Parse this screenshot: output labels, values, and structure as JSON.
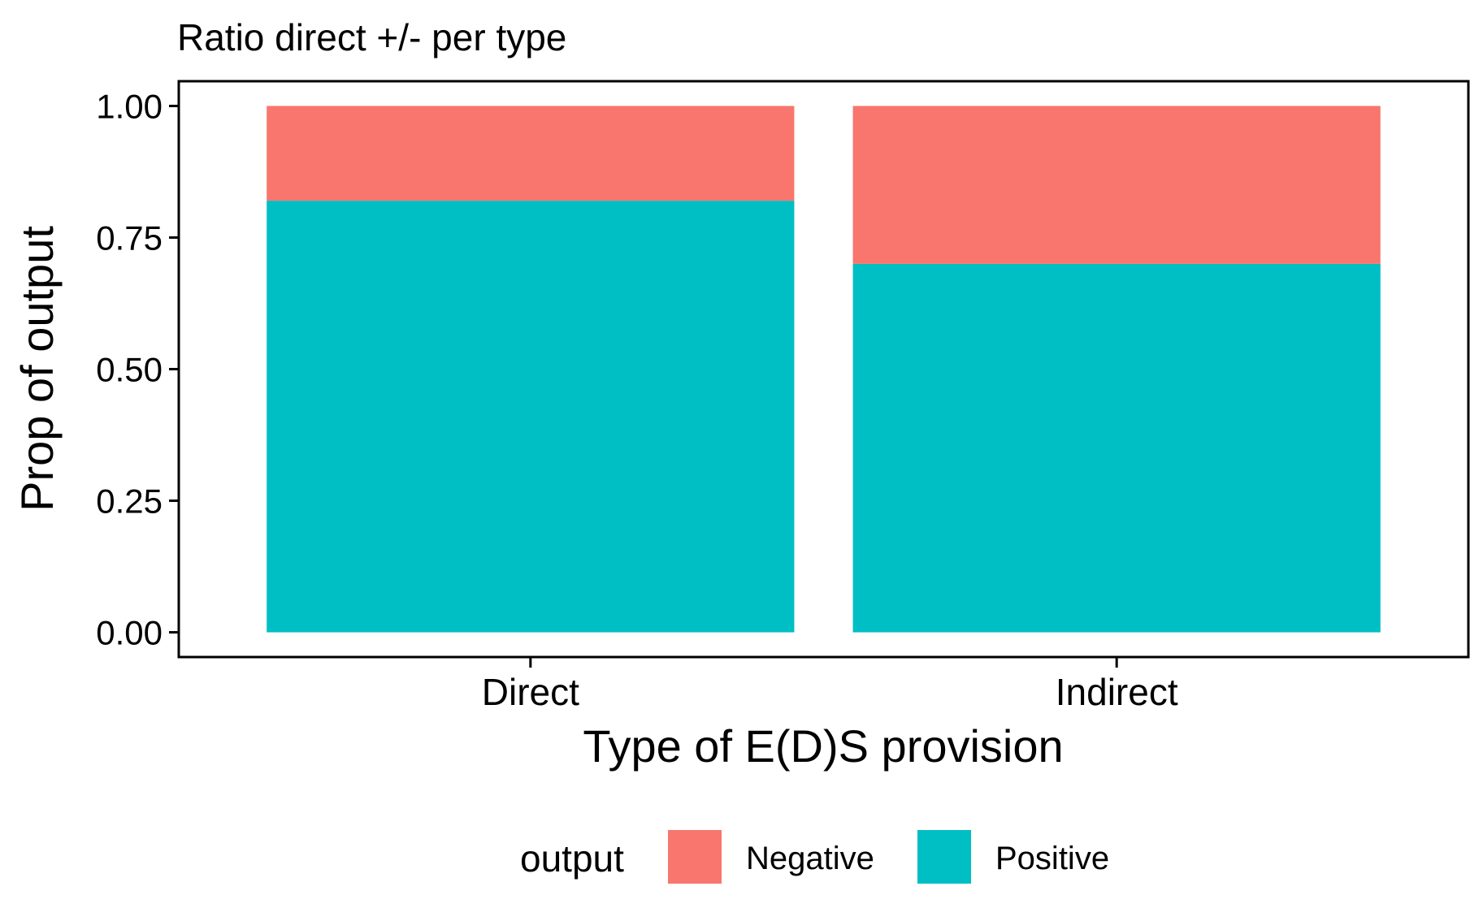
{
  "chart_data": {
    "type": "bar",
    "stacked": true,
    "title": "Ratio direct +/- per type",
    "xlabel": "Type of E(D)S provision",
    "ylabel": "Prop of output",
    "categories": [
      "Direct",
      "Indirect"
    ],
    "series": [
      {
        "name": "Positive",
        "color": "#00BFC4",
        "values": [
          0.82,
          0.7
        ]
      },
      {
        "name": "Negative",
        "color": "#F8766D",
        "values": [
          0.18,
          0.3
        ]
      }
    ],
    "ylim": [
      -0.047,
      1.047
    ],
    "yticks": [
      0,
      0.25,
      0.5,
      0.75,
      1.0
    ],
    "ytick_labels": [
      "0.00",
      "0.25",
      "0.50",
      "0.75",
      "1.00"
    ],
    "legend": {
      "title": "output",
      "position": "bottom",
      "items": [
        {
          "label": "Negative",
          "color": "#F8766D"
        },
        {
          "label": "Positive",
          "color": "#00BFC4"
        }
      ]
    }
  }
}
